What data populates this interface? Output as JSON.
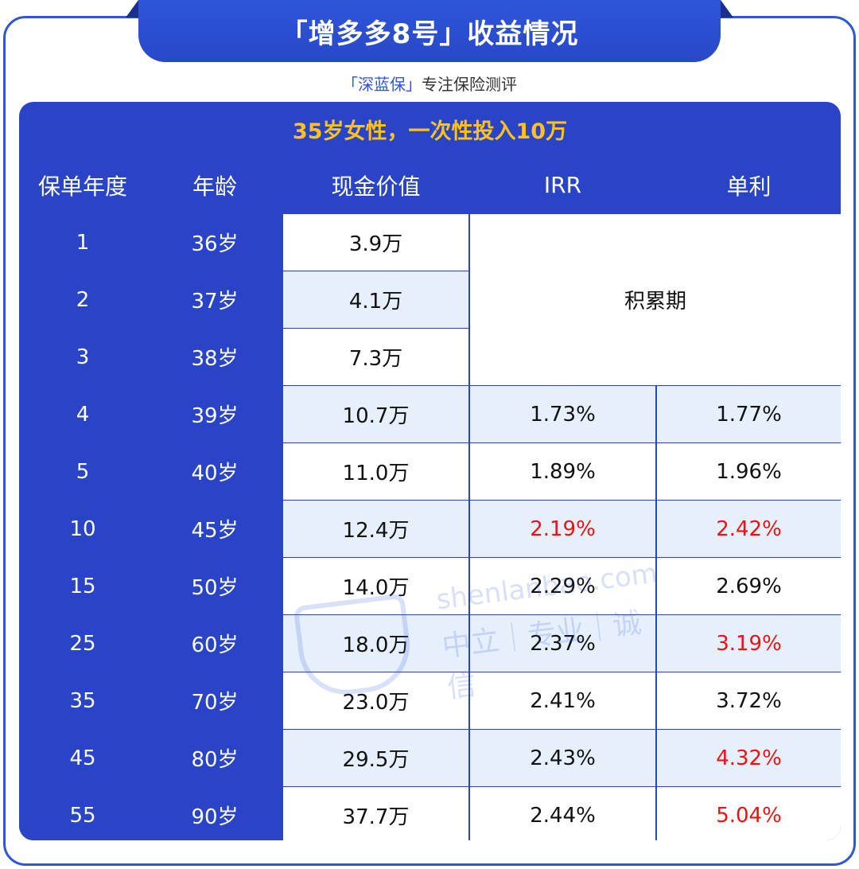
{
  "header": {
    "title": "「增多多8号」收益情况"
  },
  "subtitle": {
    "brand": "「深蓝保」",
    "tagline": "专注保险测评"
  },
  "table": {
    "caption": "35岁女性，一次性投入10万",
    "columns": [
      "保单年度",
      "年龄",
      "现金价值",
      "IRR",
      "单利"
    ],
    "accumulation_label": "积累期",
    "rows": [
      {
        "year": "1",
        "age": "36岁",
        "cash": "3.9万",
        "irr": "",
        "simple": ""
      },
      {
        "year": "2",
        "age": "37岁",
        "cash": "4.1万",
        "irr": "",
        "simple": ""
      },
      {
        "year": "3",
        "age": "38岁",
        "cash": "7.3万",
        "irr": "",
        "simple": ""
      },
      {
        "year": "4",
        "age": "39岁",
        "cash": "10.7万",
        "irr": "1.73%",
        "simple": "1.77%"
      },
      {
        "year": "5",
        "age": "40岁",
        "cash": "11.0万",
        "irr": "1.89%",
        "simple": "1.96%"
      },
      {
        "year": "10",
        "age": "45岁",
        "cash": "12.4万",
        "irr": "2.19%",
        "simple": "2.42%",
        "irr_red": true,
        "simple_red": true
      },
      {
        "year": "15",
        "age": "50岁",
        "cash": "14.0万",
        "irr": "2.29%",
        "simple": "2.69%"
      },
      {
        "year": "25",
        "age": "60岁",
        "cash": "18.0万",
        "irr": "2.37%",
        "simple": "3.19%",
        "simple_red": true
      },
      {
        "year": "35",
        "age": "70岁",
        "cash": "23.0万",
        "irr": "2.41%",
        "simple": "3.72%"
      },
      {
        "year": "45",
        "age": "80岁",
        "cash": "29.5万",
        "irr": "2.43%",
        "simple": "4.32%",
        "simple_red": true
      },
      {
        "year": "55",
        "age": "90岁",
        "cash": "37.7万",
        "irr": "2.44%",
        "simple": "5.04%",
        "simple_red": true
      }
    ]
  },
  "watermark": {
    "url": "shenlanbao.com",
    "slogan": "中立｜专业｜诚信"
  },
  "colors": {
    "primary": "#2a44c7",
    "accent": "#ffc21a",
    "highlight": "#ee1111",
    "row_alt": "#e6f0fc"
  }
}
